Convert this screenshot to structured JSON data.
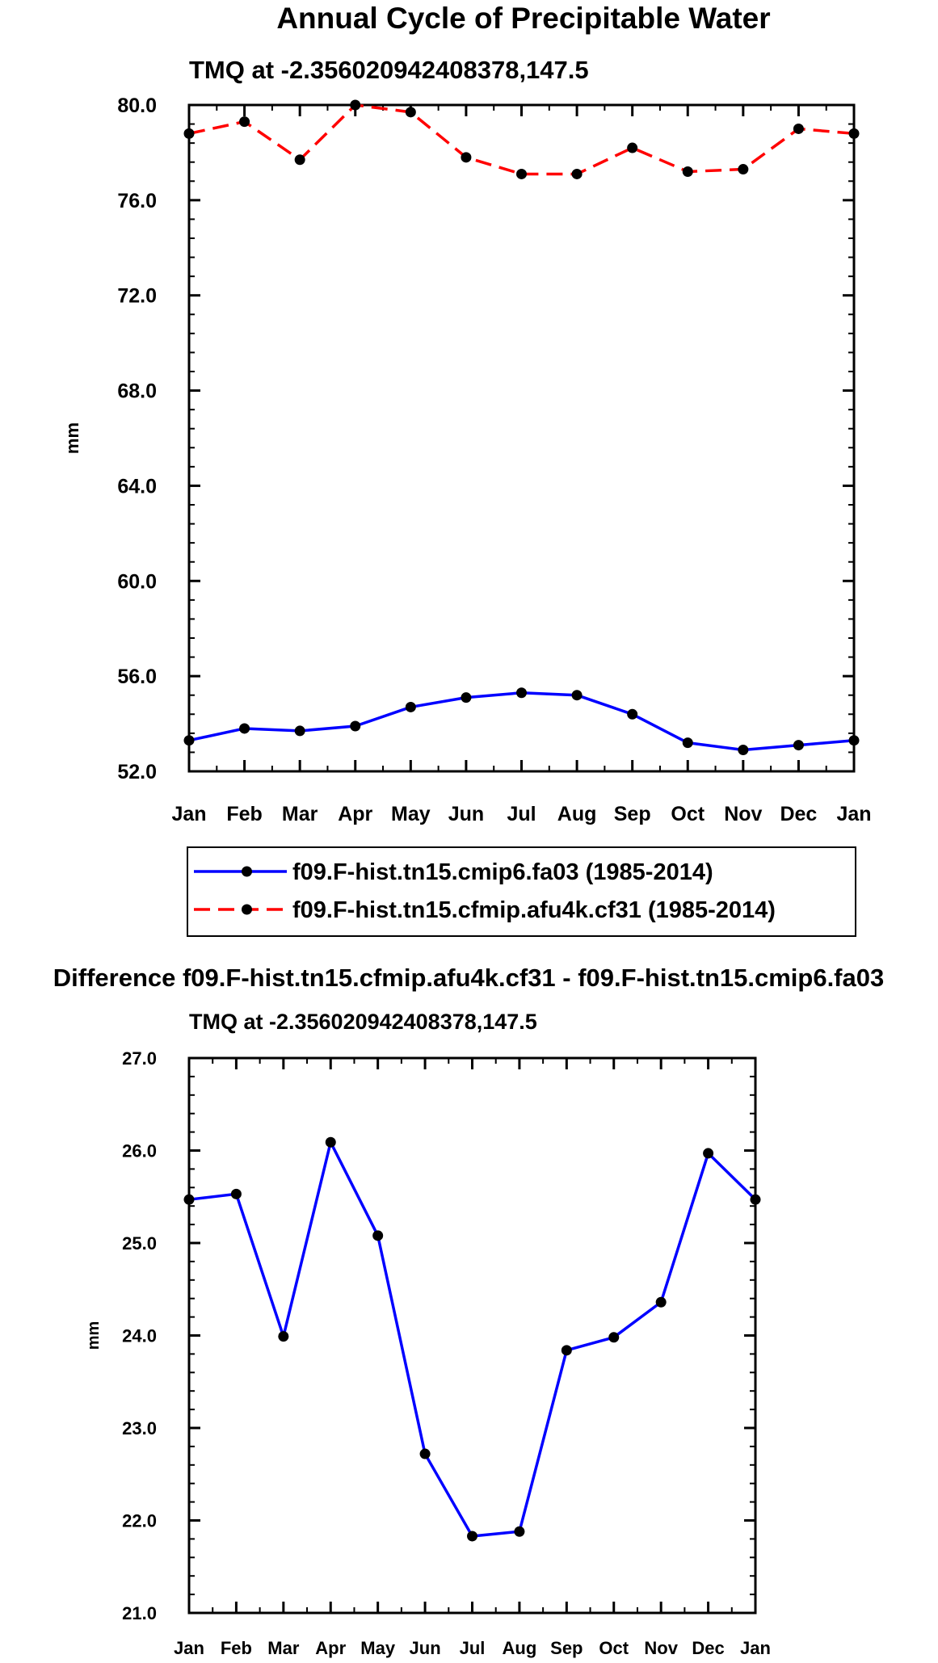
{
  "colors": {
    "blue": "#0000ff",
    "red": "#ff0000",
    "black": "#000000"
  },
  "chart_data": [
    {
      "type": "line",
      "title": "Annual Cycle of Precipitable Water",
      "subtitle": "TMQ at -2.356020942408378,147.5",
      "ylabel": "mm",
      "ylim": [
        52.0,
        80.0
      ],
      "yticks": [
        "52.0",
        "56.0",
        "60.0",
        "64.0",
        "68.0",
        "72.0",
        "76.0",
        "80.0"
      ],
      "categories": [
        "Jan",
        "Feb",
        "Mar",
        "Apr",
        "May",
        "Jun",
        "Jul",
        "Aug",
        "Sep",
        "Oct",
        "Nov",
        "Dec",
        "Jan"
      ],
      "grid": false,
      "legend_position": "bottom",
      "series": [
        {
          "name": "f09.F-hist.tn15.cmip6.fa03 (1985-2014)",
          "color": "#0000ff",
          "dash": "solid",
          "values": [
            53.3,
            53.8,
            53.7,
            53.9,
            54.7,
            55.1,
            55.3,
            55.2,
            54.4,
            53.2,
            52.9,
            53.1,
            53.3
          ]
        },
        {
          "name": "f09.F-hist.tn15.cfmip.afu4k.cf31 (1985-2014)",
          "color": "#ff0000",
          "dash": "dashed",
          "values": [
            78.8,
            79.3,
            77.7,
            80.0,
            79.7,
            77.8,
            77.1,
            77.1,
            78.2,
            77.2,
            77.3,
            79.0,
            78.8
          ]
        }
      ]
    },
    {
      "type": "line",
      "title": "Difference f09.F-hist.tn15.cfmip.afu4k.cf31 - f09.F-hist.tn15.cmip6.fa03",
      "subtitle": "TMQ at -2.356020942408378,147.5",
      "ylabel": "mm",
      "ylim": [
        21.0,
        27.0
      ],
      "yticks": [
        "21.0",
        "22.0",
        "23.0",
        "24.0",
        "25.0",
        "26.0",
        "27.0"
      ],
      "categories": [
        "Jan",
        "Feb",
        "Mar",
        "Apr",
        "May",
        "Jun",
        "Jul",
        "Aug",
        "Sep",
        "Oct",
        "Nov",
        "Dec",
        "Jan"
      ],
      "grid": false,
      "series": [
        {
          "color": "#0000ff",
          "dash": "solid",
          "values": [
            25.47,
            25.53,
            23.99,
            26.09,
            25.08,
            22.72,
            21.83,
            21.88,
            23.84,
            23.98,
            24.36,
            25.97,
            25.47
          ]
        }
      ]
    }
  ]
}
